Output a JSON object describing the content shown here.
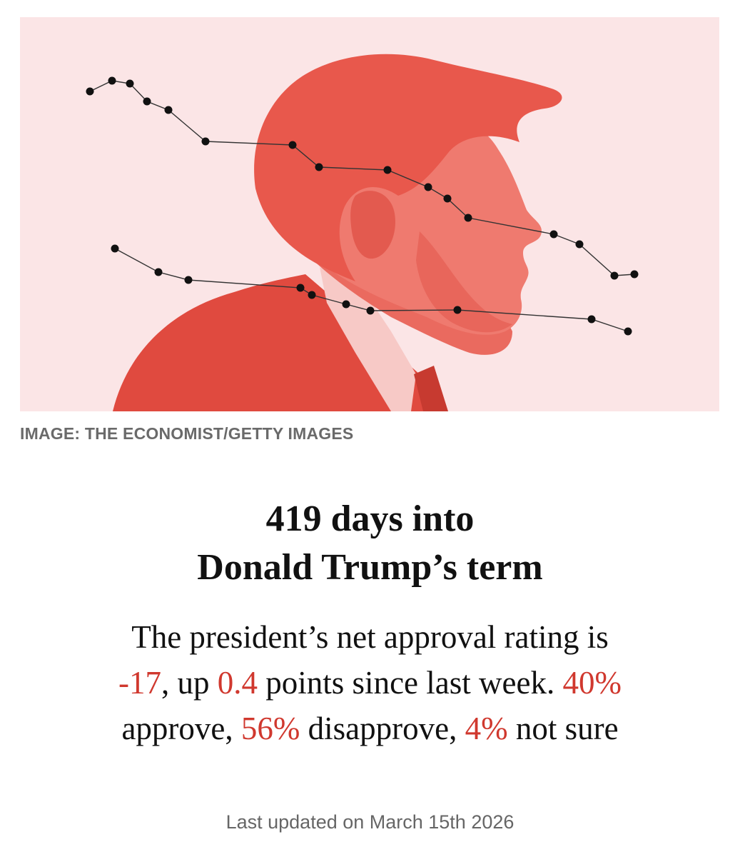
{
  "hero": {
    "image_subject": "portrait in profile",
    "tint_color": "#e3554a",
    "background_color": "#fbe5e6",
    "dot_color": "#111111"
  },
  "caption": "IMAGE: THE ECONOMIST/GETTY IMAGES",
  "headline": {
    "line1": "419 days into",
    "line2": "Donald Trump’s term"
  },
  "summary": {
    "seg1": "The president’s net approval rating is",
    "net_value": "-17",
    "seg2": ", up ",
    "change_value": "0.4",
    "seg3": " points since last week. ",
    "approve_value": "40%",
    "seg4": "approve, ",
    "disapprove_value": "56%",
    "seg5": " disapprove, ",
    "not_sure_value": "4%",
    "seg6": " not sure",
    "highlight_color": "#d0382e"
  },
  "updated": "Last updated on March 15th 2026"
}
